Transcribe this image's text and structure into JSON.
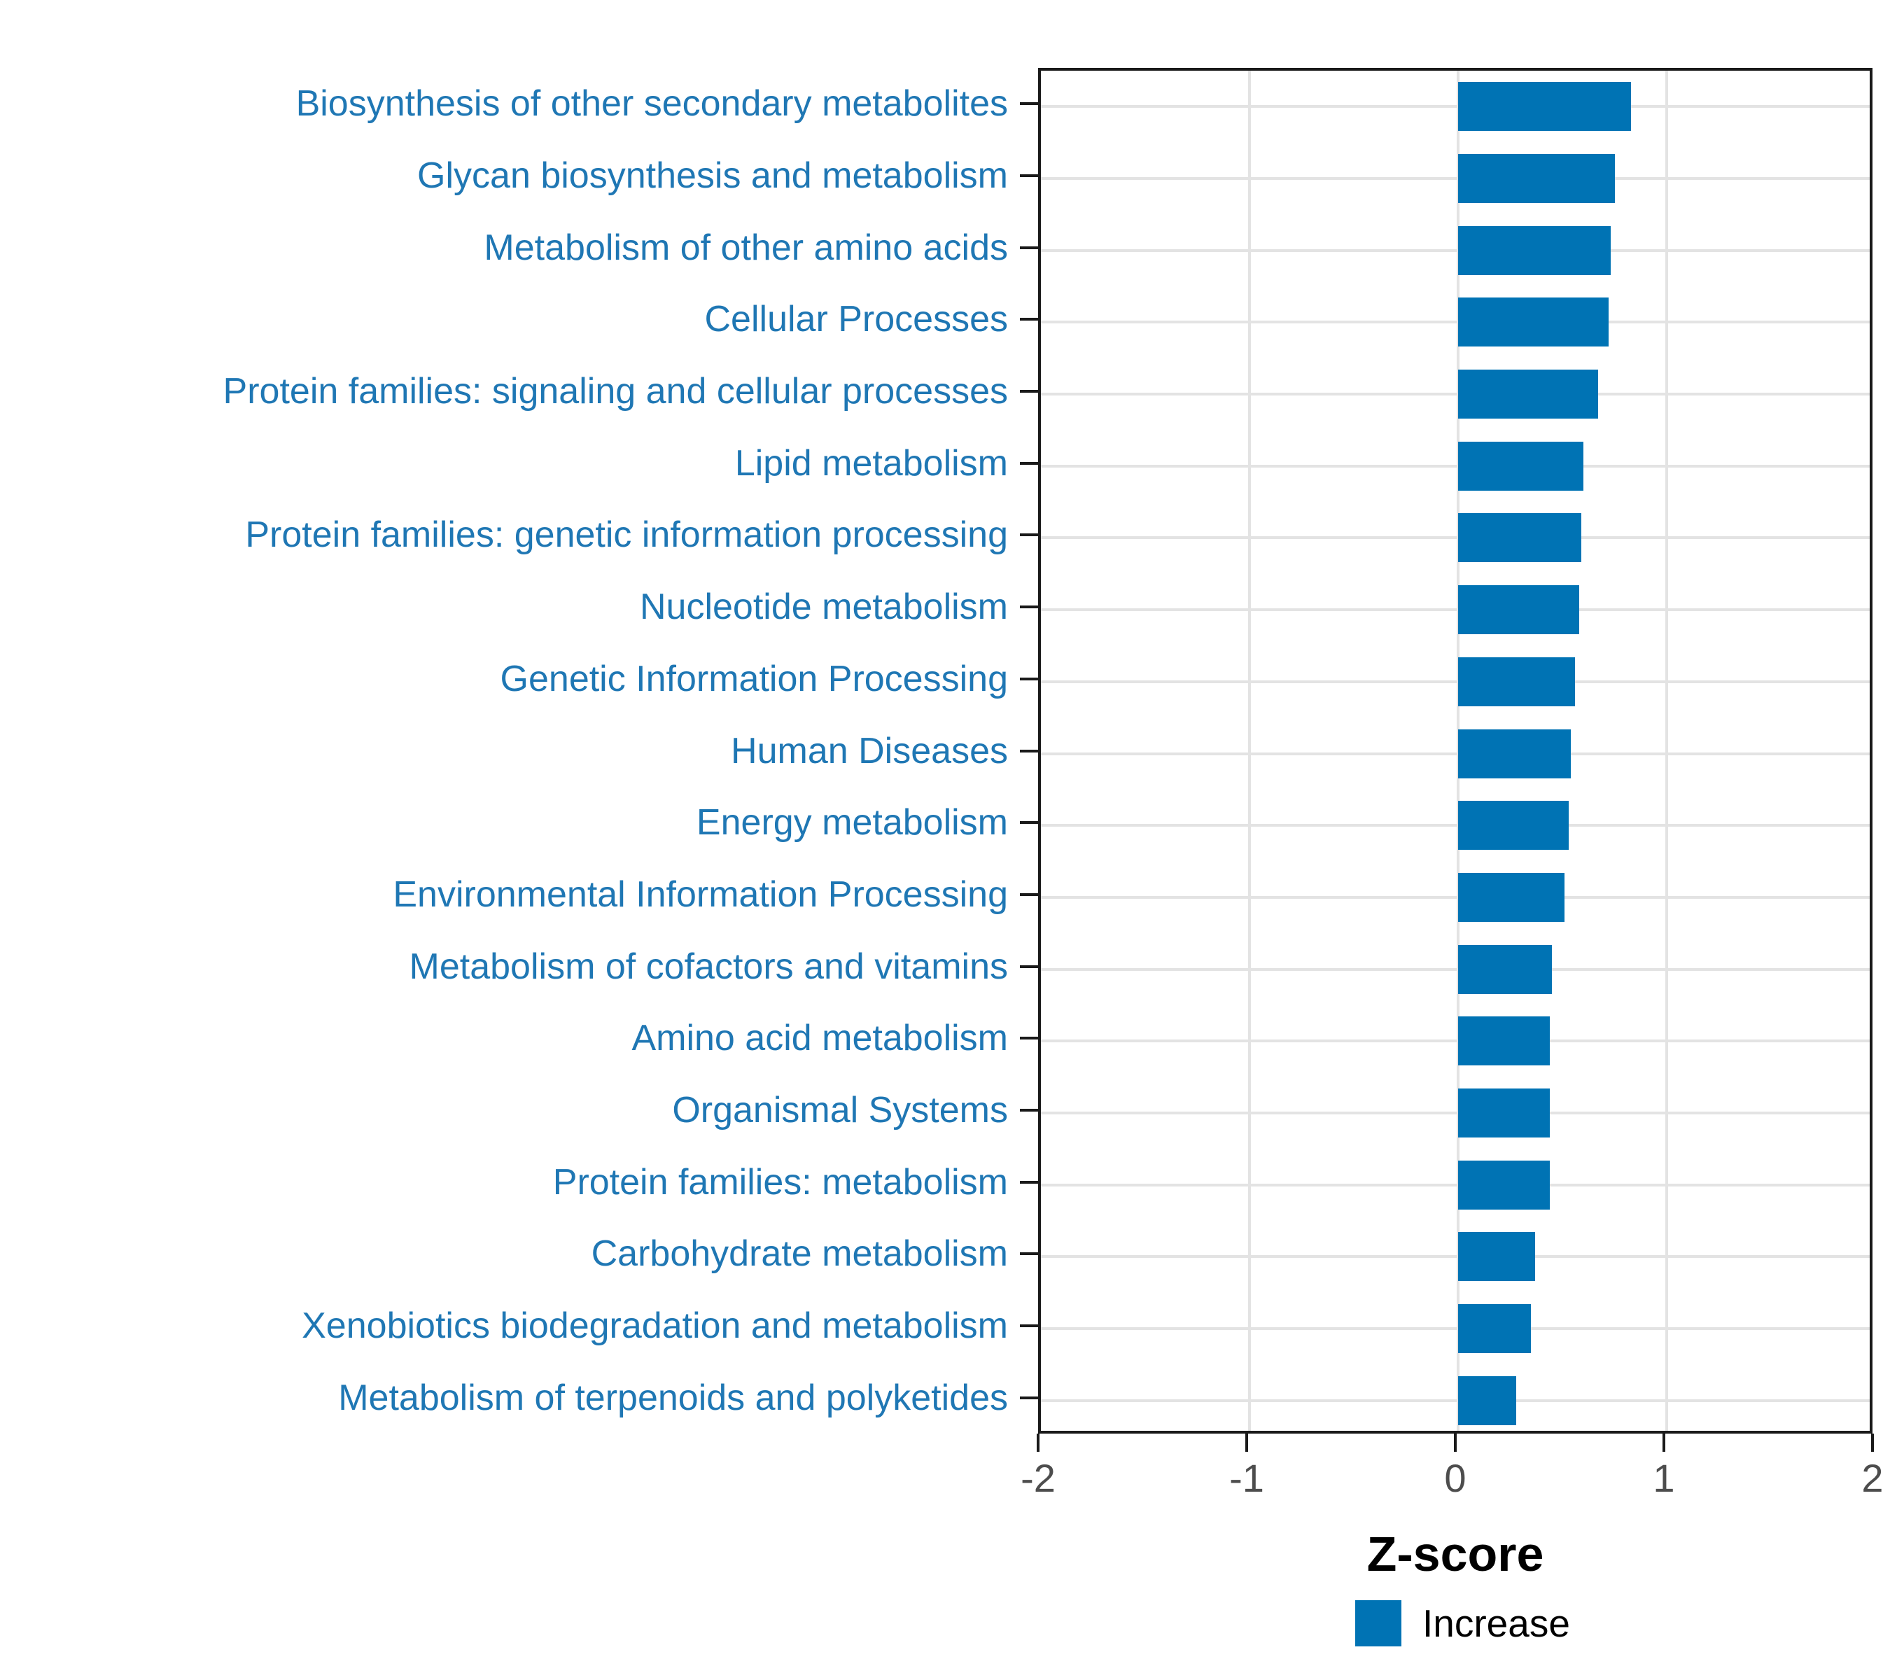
{
  "chart_data": {
    "type": "bar",
    "orientation": "horizontal",
    "title": "",
    "xlabel": "Z-score",
    "xlim": [
      -2,
      2
    ],
    "xticks": [
      "-2",
      "-1",
      "0",
      "1",
      "2"
    ],
    "xtick_values": [
      -2,
      -1,
      0,
      1,
      2
    ],
    "grid": true,
    "legend_position": "bottom",
    "categories": [
      "Biosynthesis of other secondary metabolites",
      "Glycan biosynthesis and metabolism",
      "Metabolism of other amino acids",
      "Cellular Processes",
      "Protein families: signaling and cellular processes",
      "Lipid metabolism",
      "Protein families: genetic information processing",
      "Nucleotide metabolism",
      "Genetic Information Processing",
      "Human Diseases",
      "Energy metabolism",
      "Environmental Information Processing",
      "Metabolism of cofactors and vitamins",
      "Amino acid metabolism",
      "Organismal Systems",
      "Protein families: metabolism",
      "Carbohydrate metabolism",
      "Xenobiotics biodegradation and metabolism",
      "Metabolism of terpenoids and polyketides"
    ],
    "values": [
      0.83,
      0.75,
      0.73,
      0.72,
      0.67,
      0.6,
      0.59,
      0.58,
      0.56,
      0.54,
      0.53,
      0.51,
      0.45,
      0.44,
      0.44,
      0.44,
      0.37,
      0.35,
      0.28
    ],
    "legend": [
      {
        "label": "Increase",
        "color": "#0073B4"
      }
    ],
    "colors": {
      "bar": "#0073B4",
      "category_labels": "#1F77B4",
      "tick_labels": "#4D4D4D",
      "axis_title": "#000000",
      "gridlines": "#E3E3E3",
      "panel_border": "#1A1A1A",
      "background": "#FFFFFF"
    }
  }
}
